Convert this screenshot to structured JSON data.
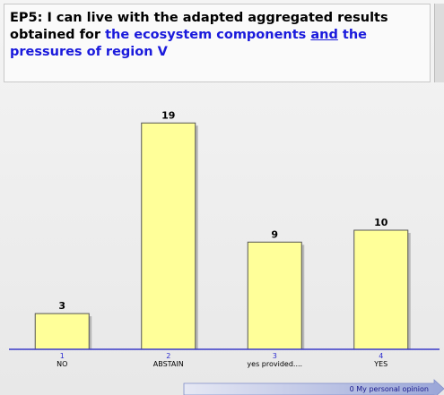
{
  "title_parts": [
    "EP5: I can live with the adapted aggregated results obtained for ",
    "the ecosystem components ",
    "and",
    " the pressures of region V"
  ],
  "chart_data": {
    "type": "bar",
    "categories": [
      "NO",
      "ABSTAIN",
      "yes provided....",
      "YES"
    ],
    "category_numbers": [
      1,
      2,
      3,
      4
    ],
    "values": [
      3,
      19,
      9,
      10
    ],
    "color": "#ffff99"
  },
  "footer_button": "0 My personal opinion"
}
